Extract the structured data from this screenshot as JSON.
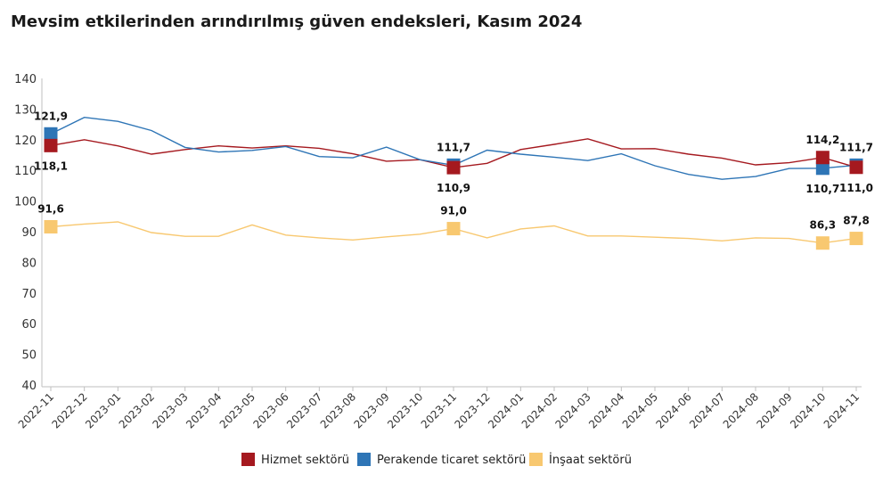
{
  "chart_data": {
    "type": "line",
    "title": "Mevsim etkilerinden arındırılmış güven endeksleri, Kasım 2024",
    "ylim": [
      40,
      140
    ],
    "yticks": [
      40,
      50,
      60,
      70,
      80,
      90,
      100,
      110,
      120,
      130,
      140
    ],
    "grid": false,
    "legend_position": "bottom",
    "categories": [
      "2022-11",
      "2022-12",
      "2023-01",
      "2023-02",
      "2023-03",
      "2023-04",
      "2023-05",
      "2023-06",
      "2023-07",
      "2023-08",
      "2023-09",
      "2023-10",
      "2023-11",
      "2023-12",
      "2024-01",
      "2024-02",
      "2024-03",
      "2024-04",
      "2024-05",
      "2024-06",
      "2024-07",
      "2024-08",
      "2024-09",
      "2024-10",
      "2024-11"
    ],
    "series": [
      {
        "name": "Hizmet sektörü",
        "color": "#a5191f",
        "values": [
          118.1,
          120.0,
          118.0,
          115.3,
          116.8,
          118.0,
          117.3,
          118.0,
          117.2,
          115.4,
          113.0,
          113.5,
          110.9,
          112.3,
          116.8,
          118.5,
          120.3,
          117.0,
          117.1,
          115.3,
          114.0,
          111.8,
          112.5,
          114.2,
          111.0
        ],
        "labels": [
          {
            "index": 0,
            "text": "118,1",
            "pos": "below"
          },
          {
            "index": 12,
            "text": "110,9",
            "pos": "below"
          },
          {
            "index": 23,
            "text": "114,2",
            "pos": "above"
          },
          {
            "index": 24,
            "text": "111,0",
            "pos": "below"
          }
        ]
      },
      {
        "name": "Perakende ticaret sektörü",
        "color": "#2e75b6",
        "values": [
          121.9,
          127.3,
          126.0,
          123.0,
          117.5,
          116.0,
          116.5,
          117.8,
          114.5,
          114.1,
          117.6,
          113.5,
          111.7,
          116.6,
          115.3,
          114.3,
          113.2,
          115.4,
          111.5,
          108.7,
          107.1,
          108.0,
          110.6,
          110.7,
          111.7
        ],
        "labels": [
          {
            "index": 0,
            "text": "121,9",
            "pos": "above"
          },
          {
            "index": 12,
            "text": "111,7",
            "pos": "above"
          },
          {
            "index": 23,
            "text": "110,7",
            "pos": "below"
          },
          {
            "index": 24,
            "text": "111,7",
            "pos": "above"
          }
        ]
      },
      {
        "name": "İnşaat sektörü",
        "color": "#f8c870",
        "values": [
          91.6,
          92.5,
          93.2,
          89.7,
          88.5,
          88.5,
          92.2,
          88.9,
          88.0,
          87.3,
          88.3,
          89.2,
          91.0,
          88.0,
          90.9,
          91.9,
          88.6,
          88.6,
          88.2,
          87.8,
          87.0,
          88.0,
          87.8,
          86.3,
          87.8
        ],
        "labels": [
          {
            "index": 0,
            "text": "91,6",
            "pos": "above"
          },
          {
            "index": 12,
            "text": "91,0",
            "pos": "above"
          },
          {
            "index": 23,
            "text": "86,3",
            "pos": "above"
          },
          {
            "index": 24,
            "text": "87,8",
            "pos": "above"
          }
        ]
      }
    ]
  }
}
